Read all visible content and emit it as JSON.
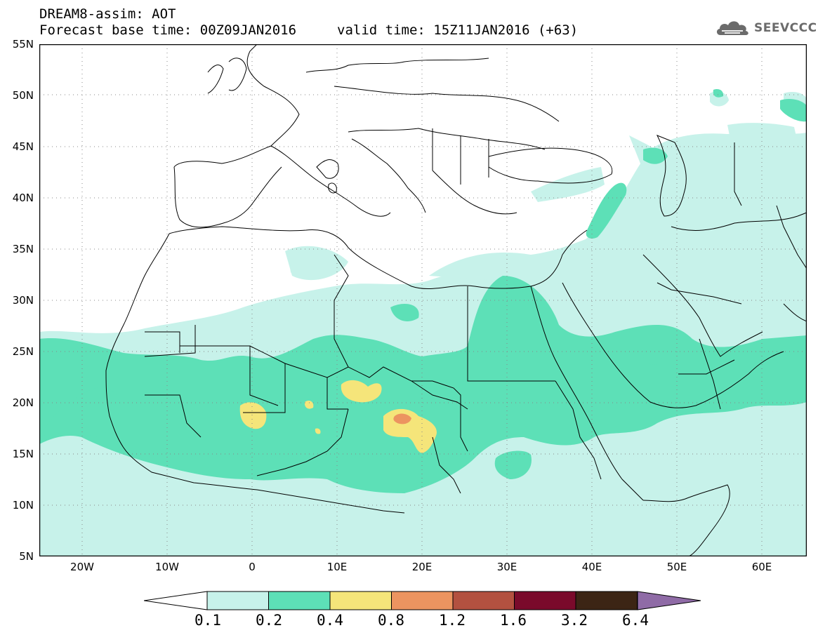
{
  "header": {
    "title_line1": "DREAM8-assim: AOT",
    "title_line2": "Forecast base time: 00Z09JAN2016",
    "valid_time": "valid time: 15Z11JAN2016 (+63)"
  },
  "logo": {
    "text": "SEEVCCC",
    "icon": "cloud-icon"
  },
  "map": {
    "variable": "AOT",
    "region": "North Africa, Middle East and Europe",
    "lat_labels": [
      "55N",
      "50N",
      "45N",
      "40N",
      "35N",
      "30N",
      "25N",
      "20N",
      "15N",
      "10N",
      "5N"
    ],
    "lon_labels": [
      "20W",
      "10W",
      "0",
      "10E",
      "20E",
      "30E",
      "40E",
      "50E",
      "60E"
    ]
  },
  "colorbar": {
    "labels": [
      "0.1",
      "0.2",
      "0.4",
      "0.8",
      "1.2",
      "1.6",
      "3.2",
      "6.4"
    ],
    "colors": [
      "#c7f2ea",
      "#5de0b7",
      "#f5e57a",
      "#ec9460",
      "#b35140",
      "#7a0a2b",
      "#3c2515",
      "#8f6ba6"
    ]
  }
}
